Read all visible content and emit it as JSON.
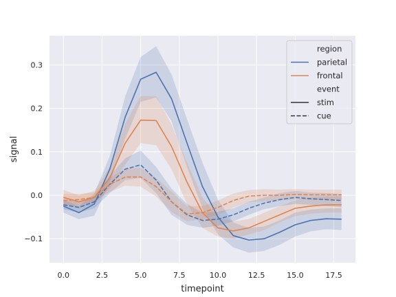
{
  "chart_data": {
    "type": "line",
    "title": "",
    "xlabel": "timepoint",
    "ylabel": "signal",
    "xlim": [
      -0.9,
      18.9
    ],
    "ylim": [
      -0.155,
      0.367
    ],
    "xticks": [
      0.0,
      2.5,
      5.0,
      7.5,
      10.0,
      12.5,
      15.0,
      17.5
    ],
    "xtick_labels": [
      "0.0",
      "2.5",
      "5.0",
      "7.5",
      "10.0",
      "12.5",
      "15.0",
      "17.5"
    ],
    "yticks": [
      -0.1,
      0.0,
      0.1,
      0.2,
      0.3
    ],
    "ytick_labels": [
      "−0.1",
      "0.0",
      "0.1",
      "0.2",
      "0.3"
    ],
    "grid": true,
    "legend_position": "top-right",
    "x": [
      0,
      1,
      2,
      3,
      4,
      5,
      6,
      7,
      8,
      9,
      10,
      11,
      12,
      13,
      14,
      15,
      16,
      17,
      18
    ],
    "series": [
      {
        "region": "parietal",
        "event": "stim",
        "color": "#4c72b0",
        "dash": "solid",
        "values": [
          -0.025,
          -0.04,
          -0.02,
          0.06,
          0.18,
          0.267,
          0.283,
          0.222,
          0.12,
          0.02,
          -0.05,
          -0.093,
          -0.103,
          -0.1,
          -0.085,
          -0.068,
          -0.058,
          -0.054,
          -0.055
        ],
        "ci_low": [
          -0.04,
          -0.055,
          -0.047,
          0.03,
          0.13,
          0.215,
          0.225,
          0.17,
          0.065,
          -0.03,
          -0.09,
          -0.12,
          -0.132,
          -0.128,
          -0.114,
          -0.095,
          -0.083,
          -0.078,
          -0.08
        ],
        "ci_high": [
          -0.01,
          -0.025,
          0.004,
          0.09,
          0.228,
          0.318,
          0.343,
          0.278,
          0.175,
          0.075,
          -0.01,
          -0.063,
          -0.075,
          -0.072,
          -0.058,
          -0.04,
          -0.033,
          -0.03,
          -0.03
        ]
      },
      {
        "region": "frontal",
        "event": "stim",
        "color": "#dd8452",
        "dash": "solid",
        "values": [
          -0.005,
          -0.015,
          -0.005,
          0.04,
          0.12,
          0.173,
          0.172,
          0.112,
          0.03,
          -0.04,
          -0.075,
          -0.082,
          -0.075,
          -0.06,
          -0.045,
          -0.03,
          -0.025,
          -0.022,
          -0.022
        ],
        "ci_low": [
          -0.02,
          -0.03,
          -0.02,
          0.015,
          0.07,
          0.12,
          0.115,
          0.06,
          -0.02,
          -0.075,
          -0.095,
          -0.1,
          -0.09,
          -0.08,
          -0.062,
          -0.048,
          -0.042,
          -0.04,
          -0.04
        ],
        "ci_high": [
          0.012,
          0.0,
          0.01,
          0.065,
          0.165,
          0.228,
          0.228,
          0.163,
          0.075,
          -0.005,
          -0.05,
          -0.06,
          -0.055,
          -0.04,
          -0.025,
          -0.012,
          -0.005,
          -0.003,
          -0.003
        ]
      },
      {
        "region": "parietal",
        "event": "cue",
        "color": "#4c72b0",
        "dash": "dashed",
        "values": [
          -0.022,
          -0.028,
          -0.015,
          0.025,
          0.06,
          0.07,
          0.035,
          -0.015,
          -0.045,
          -0.058,
          -0.055,
          -0.045,
          -0.03,
          -0.018,
          -0.01,
          -0.005,
          -0.008,
          -0.01,
          -0.012
        ],
        "ci_low": [
          -0.032,
          -0.04,
          -0.03,
          0.005,
          0.035,
          0.04,
          0.005,
          -0.045,
          -0.068,
          -0.075,
          -0.07,
          -0.06,
          -0.045,
          -0.032,
          -0.025,
          -0.02,
          -0.022,
          -0.025,
          -0.027
        ],
        "ci_high": [
          -0.01,
          -0.015,
          -0.002,
          0.045,
          0.085,
          0.103,
          0.065,
          0.015,
          -0.02,
          -0.04,
          -0.038,
          -0.03,
          -0.015,
          -0.005,
          0.005,
          0.01,
          0.006,
          0.005,
          0.003
        ]
      },
      {
        "region": "frontal",
        "event": "cue",
        "color": "#dd8452",
        "dash": "dashed",
        "values": [
          -0.012,
          -0.01,
          -0.005,
          0.025,
          0.042,
          0.042,
          0.02,
          -0.015,
          -0.043,
          -0.04,
          -0.028,
          -0.012,
          -0.002,
          0.0,
          0.0,
          0.002,
          0.001,
          0.001,
          0.001
        ],
        "ci_low": [
          -0.025,
          -0.022,
          -0.015,
          0.008,
          0.022,
          0.02,
          -0.003,
          -0.038,
          -0.06,
          -0.055,
          -0.045,
          -0.028,
          -0.016,
          -0.014,
          -0.012,
          -0.01,
          -0.01,
          -0.01,
          -0.01
        ],
        "ci_high": [
          0.003,
          0.003,
          0.006,
          0.04,
          0.062,
          0.063,
          0.04,
          0.008,
          -0.025,
          -0.025,
          -0.012,
          0.004,
          0.012,
          0.014,
          0.013,
          0.014,
          0.013,
          0.013,
          0.013
        ]
      }
    ],
    "legend": {
      "title_hue": "region",
      "hue_items": [
        {
          "label": "parietal",
          "color": "#4c72b0"
        },
        {
          "label": "frontal",
          "color": "#dd8452"
        }
      ],
      "title_style": "event",
      "style_items": [
        {
          "label": "stim",
          "dash": "solid"
        },
        {
          "label": "cue",
          "dash": "dashed"
        }
      ]
    },
    "colors": {
      "background": "#eaeaf2",
      "grid": "#ffffff",
      "line_key": "#333333"
    }
  }
}
